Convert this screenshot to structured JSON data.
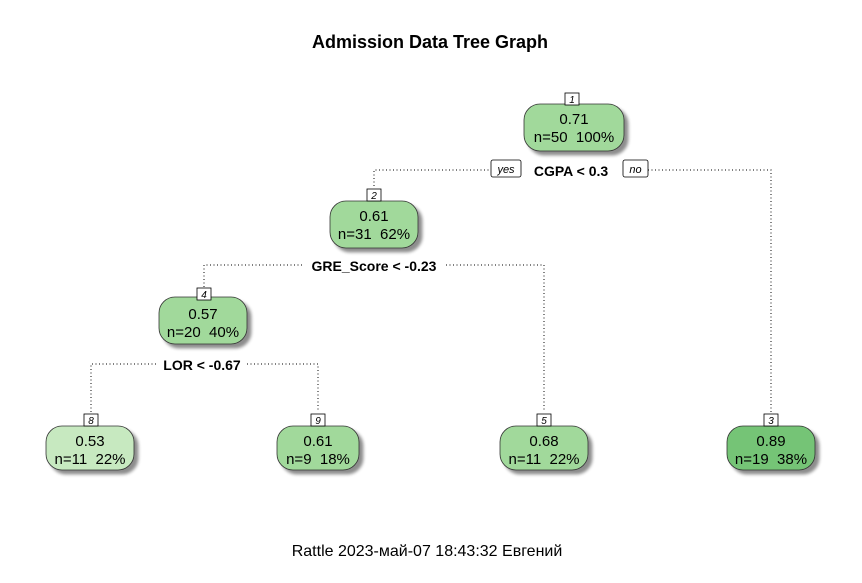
{
  "title": "Admission Data Tree Graph",
  "footer": "Rattle 2023-май-07 18:43:32 Евгений",
  "edge_labels": {
    "yes": "yes",
    "no": "no"
  },
  "colors": {
    "node_light": "#c7e9c0",
    "node_mid": "#a1d99b",
    "node_dark": "#74c476"
  },
  "nodes": [
    {
      "id": "1",
      "value": "0.71",
      "stats": "n=50  100%",
      "fill": "#a1d99b"
    },
    {
      "id": "2",
      "value": "0.61",
      "stats": "n=31  62%",
      "fill": "#a1d99b"
    },
    {
      "id": "4",
      "value": "0.57",
      "stats": "n=20  40%",
      "fill": "#a1d99b"
    },
    {
      "id": "8",
      "value": "0.53",
      "stats": "n=11  22%",
      "fill": "#c7e9c0"
    },
    {
      "id": "9",
      "value": "0.61",
      "stats": "n=9  18%",
      "fill": "#a1d99b"
    },
    {
      "id": "5",
      "value": "0.68",
      "stats": "n=11  22%",
      "fill": "#a1d99b"
    },
    {
      "id": "3",
      "value": "0.89",
      "stats": "n=19  38%",
      "fill": "#74c476"
    }
  ],
  "splits": [
    {
      "node": "1",
      "label": "CGPA < 0.3"
    },
    {
      "node": "2",
      "label": "GRE_Score < -0.23"
    },
    {
      "node": "4",
      "label": "LOR < -0.67"
    }
  ]
}
